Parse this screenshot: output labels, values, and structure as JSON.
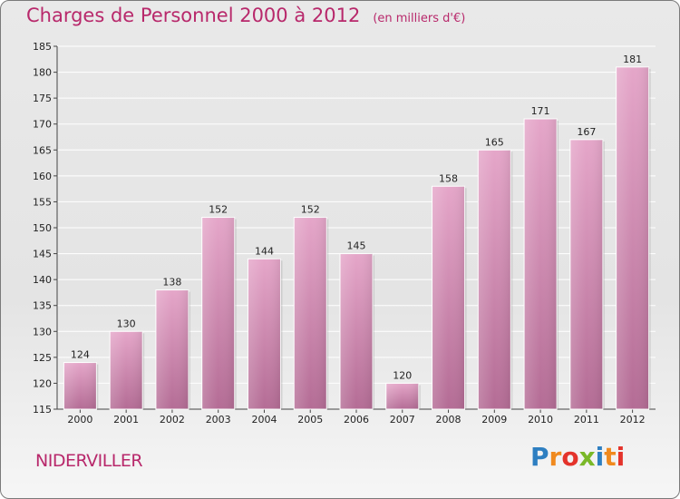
{
  "header": {
    "title": "Charges de Personnel 2000 à 2012",
    "unit": "(en milliers d'€)"
  },
  "footer": {
    "town": "NIDERVILLER",
    "logo_letters": [
      "P",
      "r",
      "o",
      "x",
      "i",
      "t",
      "i"
    ],
    "logo_colors": [
      "#2e7fc1",
      "#f08a1e",
      "#e4332b",
      "#7ab828",
      "#2e7fc1",
      "#f08a1e",
      "#e4332b"
    ]
  },
  "chart_data": {
    "type": "bar",
    "title": "Charges de Personnel 2000 à 2012",
    "subtitle": "(en milliers d'€)",
    "categories": [
      "2000",
      "2001",
      "2002",
      "2003",
      "2004",
      "2005",
      "2006",
      "2007",
      "2008",
      "2009",
      "2010",
      "2011",
      "2012"
    ],
    "values": [
      124,
      130,
      138,
      152,
      144,
      152,
      145,
      120,
      158,
      165,
      171,
      167,
      181
    ],
    "ylim": [
      115,
      185
    ],
    "yticks": [
      115,
      120,
      125,
      130,
      135,
      140,
      145,
      150,
      155,
      160,
      165,
      170,
      175,
      180,
      185
    ],
    "grid": true,
    "bar_color": "#c0709c"
  }
}
